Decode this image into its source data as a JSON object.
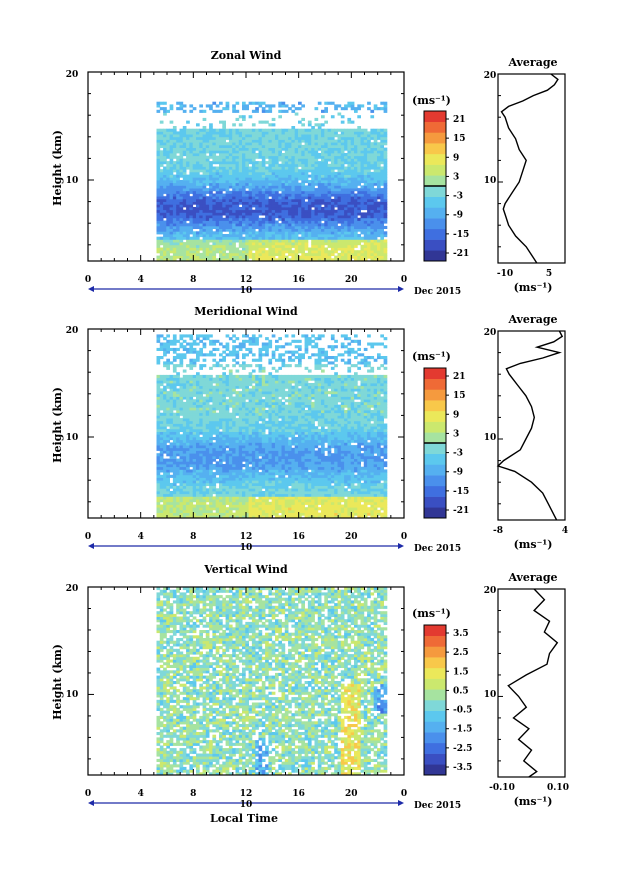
{
  "figure": {
    "date_label": "Dec 2015",
    "x_axis_title": "Local Time",
    "y_axis_title": "Height (km)",
    "average_title": "Average",
    "unit_label": "(ms⁻¹)",
    "day_label": "10"
  },
  "colorscale": [
    "#313695",
    "#3a4fc2",
    "#3f6fe0",
    "#4a90ec",
    "#55b0f0",
    "#5cc8ee",
    "#7fd8d8",
    "#a6e3a0",
    "#cbe86e",
    "#ebe85a",
    "#f8c84a",
    "#f59a3e",
    "#ef6a36",
    "#e33a30"
  ],
  "chart_data": [
    {
      "type": "heatmap",
      "title": "Zonal Wind",
      "xlabel": "Local Time",
      "ylabel": "Height (km)",
      "x_ticks": [
        "0",
        "4",
        "8",
        "12",
        "16",
        "20",
        "0"
      ],
      "xlim": [
        0,
        24
      ],
      "y_ticks": [
        "10",
        "20"
      ],
      "ylim": [
        2.5,
        20
      ],
      "data_x_range": [
        5.2,
        22.7
      ],
      "colorbar": {
        "label": "(ms⁻¹)",
        "ticks": [
          "21",
          "15",
          "9",
          "3",
          "-3",
          "-9",
          "-15",
          "-21"
        ],
        "range": [
          -24,
          24
        ],
        "zero_line": 0
      },
      "field": {
        "kind": "jet",
        "base": -3,
        "jet_height": 7.3,
        "jet_strength": -15,
        "upper_value": -5,
        "gap": [
          14.5,
          16.2
        ],
        "data_top": 17.2
      },
      "average_profile": {
        "x_ticks": [
          "-10",
          "5"
        ],
        "xlim": [
          -12,
          7
        ],
        "heights": [
          2.5,
          3,
          4,
          5,
          6,
          7,
          7.5,
          8,
          9,
          10,
          11,
          12,
          13,
          14,
          15,
          16,
          16.5,
          17,
          17.5,
          18,
          18.5,
          19,
          19.5,
          20
        ],
        "values": [
          -1,
          -2,
          -4,
          -7,
          -9,
          -10,
          -10.5,
          -10,
          -8,
          -6,
          -5,
          -4,
          -6,
          -7,
          -9,
          -10,
          -11,
          -9,
          -5,
          -2,
          2,
          4,
          5,
          3
        ]
      }
    },
    {
      "type": "heatmap",
      "title": "Meridional Wind",
      "xlabel": "Local Time",
      "ylabel": "Height (km)",
      "x_ticks": [
        "0",
        "4",
        "8",
        "12",
        "16",
        "20",
        "0"
      ],
      "xlim": [
        0,
        24
      ],
      "y_ticks": [
        "10",
        "20"
      ],
      "ylim": [
        2.5,
        20
      ],
      "data_x_range": [
        5.2,
        22.7
      ],
      "colorbar": {
        "label": "(ms⁻¹)",
        "ticks": [
          "21",
          "15",
          "9",
          "3",
          "-3",
          "-9",
          "-15",
          "-21"
        ],
        "range": [
          -24,
          24
        ],
        "zero_line": 0
      },
      "field": {
        "kind": "jet",
        "base": -2,
        "jet_height": 8.0,
        "jet_strength": -9,
        "upper_value": -4,
        "gap": [
          15.5,
          16.5
        ],
        "data_top": 19.5
      },
      "average_profile": {
        "x_ticks": [
          "-8",
          "4"
        ],
        "xlim": [
          -8,
          4
        ],
        "heights": [
          2.5,
          3,
          4,
          5,
          6,
          7,
          7.5,
          8,
          9,
          10,
          11,
          12,
          13,
          14,
          15,
          16,
          16.5,
          17,
          17.5,
          18,
          18.5,
          19,
          19.5,
          20
        ],
        "values": [
          2.5,
          2,
          1,
          0,
          -2,
          -5,
          -8,
          -7,
          -4,
          -3,
          -2,
          -1.5,
          -2,
          -3,
          -4.5,
          -6,
          -6.5,
          -4,
          0,
          3,
          -1,
          2,
          3.5,
          3
        ]
      }
    },
    {
      "type": "heatmap",
      "title": "Vertical Wind",
      "xlabel": "Local Time",
      "ylabel": "Height (km)",
      "x_ticks": [
        "0",
        "4",
        "8",
        "12",
        "16",
        "20",
        "0"
      ],
      "xlim": [
        0,
        24
      ],
      "y_ticks": [
        "10",
        "20"
      ],
      "ylim": [
        2.5,
        20
      ],
      "data_x_range": [
        5.2,
        22.7
      ],
      "colorbar": {
        "label": "(ms⁻¹)",
        "ticks": [
          "3.5",
          "2.5",
          "1.5",
          "0.5",
          "-0.5",
          "-1.5",
          "-2.5",
          "-3.5"
        ],
        "range": [
          -4,
          4
        ],
        "zero_line": null
      },
      "field": {
        "kind": "noise",
        "base": 0.0,
        "data_top": 20
      },
      "average_profile": {
        "x_ticks": [
          "-0.10",
          "0.10"
        ],
        "xlim": [
          -0.14,
          0.12
        ],
        "heights": [
          2.5,
          3,
          4,
          5,
          6,
          7,
          8,
          9,
          10,
          11,
          12,
          13,
          14,
          15,
          16,
          17,
          18,
          19,
          20
        ],
        "values": [
          -0.02,
          0.01,
          -0.04,
          -0.01,
          -0.06,
          -0.02,
          -0.08,
          -0.03,
          -0.06,
          -0.1,
          -0.03,
          0.05,
          0.06,
          0.09,
          0.04,
          0.06,
          0.0,
          0.04,
          0.0
        ]
      }
    }
  ]
}
